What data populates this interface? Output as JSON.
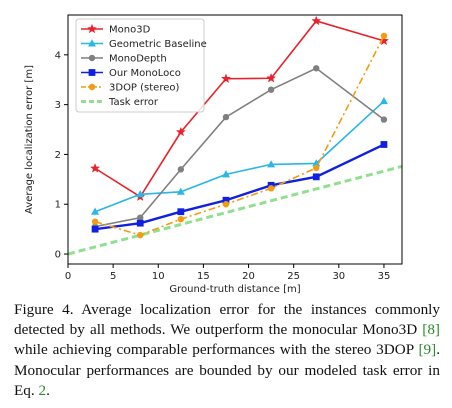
{
  "chart_data": {
    "type": "line",
    "xlabel": "Ground-truth distance [m]",
    "ylabel": "Average localization error [m]",
    "xlim": [
      0,
      37
    ],
    "ylim": [
      -0.2,
      4.8
    ],
    "xticks": [
      0,
      5,
      10,
      15,
      20,
      25,
      30,
      35
    ],
    "yticks": [
      0,
      1,
      2,
      3,
      4
    ],
    "grid": false,
    "legend_position": "top-left",
    "series": [
      {
        "name": "Mono3D",
        "color": "#e8212a",
        "marker": "star",
        "dash": "solid",
        "x": [
          3,
          8,
          12.5,
          17.5,
          22.5,
          27.5,
          35
        ],
        "y": [
          1.72,
          1.15,
          2.45,
          3.52,
          3.53,
          4.68,
          4.28
        ]
      },
      {
        "name": "Geometric Baseline",
        "color": "#29b6e8",
        "marker": "triangle",
        "dash": "solid",
        "x": [
          3,
          8,
          12.5,
          17.5,
          22.5,
          27.5,
          35
        ],
        "y": [
          0.85,
          1.2,
          1.25,
          1.6,
          1.8,
          1.82,
          3.07
        ]
      },
      {
        "name": "MonoDepth",
        "color": "#808080",
        "marker": "circle",
        "dash": "solid",
        "x": [
          3,
          8,
          12.5,
          17.5,
          22.5,
          27.5,
          35
        ],
        "y": [
          0.55,
          0.73,
          1.7,
          2.75,
          3.3,
          3.73,
          2.7
        ]
      },
      {
        "name": "Our MonoLoco",
        "color": "#1020e0",
        "marker": "square",
        "dash": "solid",
        "x": [
          3,
          8,
          12.5,
          17.5,
          22.5,
          27.5,
          35
        ],
        "y": [
          0.5,
          0.62,
          0.85,
          1.08,
          1.38,
          1.55,
          2.2
        ]
      },
      {
        "name": "3DOP (stereo)",
        "color": "#f39c12",
        "marker": "circle",
        "dash": "dashdot",
        "x": [
          3,
          8,
          12.5,
          17.5,
          22.5,
          27.5,
          35
        ],
        "y": [
          0.65,
          0.38,
          0.7,
          1.0,
          1.32,
          1.73,
          4.38
        ]
      },
      {
        "name": "Task error",
        "color": "#90e090",
        "marker": "none",
        "dash": "dashed",
        "x": [
          0,
          37
        ],
        "y": [
          0.0,
          1.76
        ]
      }
    ]
  },
  "caption": {
    "part1": "Figure 4. Average localization error for the instances commonly detected by all methods. We outperform the monocular Mono3D ",
    "ref1": "[8]",
    "part2": " while achieving comparable performances with the stereo 3DOP ",
    "ref2": "[9]",
    "part3": ". Monocular performances are bounded by our modeled task error in Eq. ",
    "ref3": "2",
    "part4": "."
  }
}
